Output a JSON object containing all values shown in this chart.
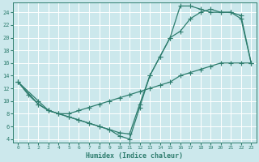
{
  "xlabel": "Humidex (Indice chaleur)",
  "bg_color": "#cce8ec",
  "grid_color": "#ffffff",
  "line_color": "#2e7d6e",
  "xlim": [
    -0.5,
    23.5
  ],
  "ylim": [
    3.5,
    25.5
  ],
  "yticks": [
    4,
    6,
    8,
    10,
    12,
    14,
    16,
    18,
    20,
    22,
    24
  ],
  "xticks": [
    0,
    1,
    2,
    3,
    4,
    5,
    6,
    7,
    8,
    9,
    10,
    11,
    12,
    13,
    14,
    15,
    16,
    17,
    18,
    19,
    20,
    21,
    22,
    23
  ],
  "curve1_x": [
    0,
    2,
    3,
    4,
    5,
    6,
    7,
    8,
    9,
    10,
    11,
    12,
    13,
    14,
    15,
    16,
    17,
    18,
    19,
    20,
    21,
    22,
    23
  ],
  "curve1_y": [
    13,
    9.5,
    8.5,
    8.0,
    7.5,
    7.0,
    6.5,
    6.0,
    5.5,
    5.0,
    4.8,
    9.5,
    14.0,
    17.0,
    20.0,
    25.0,
    25.0,
    24.5,
    24.0,
    24.0,
    24.0,
    23.5,
    16.0
  ],
  "curve2_x": [
    0,
    1,
    2,
    3,
    4,
    5,
    6,
    7,
    8,
    9,
    10,
    11,
    12,
    13,
    14,
    15,
    16,
    17,
    18,
    19,
    20,
    21,
    22,
    23
  ],
  "curve2_y": [
    13,
    11,
    9.5,
    8.5,
    8.0,
    7.5,
    7.0,
    6.5,
    6.0,
    5.5,
    4.5,
    4.0,
    9.0,
    14.0,
    17.0,
    20.0,
    21.0,
    23.0,
    24.0,
    24.5,
    24.0,
    24.0,
    23.0,
    16.0
  ],
  "curve3_x": [
    0,
    2,
    3,
    4,
    5,
    6,
    7,
    8,
    9,
    10,
    11,
    12,
    13,
    14,
    15,
    16,
    17,
    18,
    19,
    20,
    21,
    22,
    23
  ],
  "curve3_y": [
    13,
    10,
    8.5,
    8.0,
    8.0,
    8.5,
    9.0,
    9.5,
    10.0,
    10.5,
    11.0,
    11.5,
    12.0,
    12.5,
    13.0,
    14.0,
    14.5,
    15.0,
    15.5,
    16.0,
    16.0,
    16.0,
    16.0
  ]
}
